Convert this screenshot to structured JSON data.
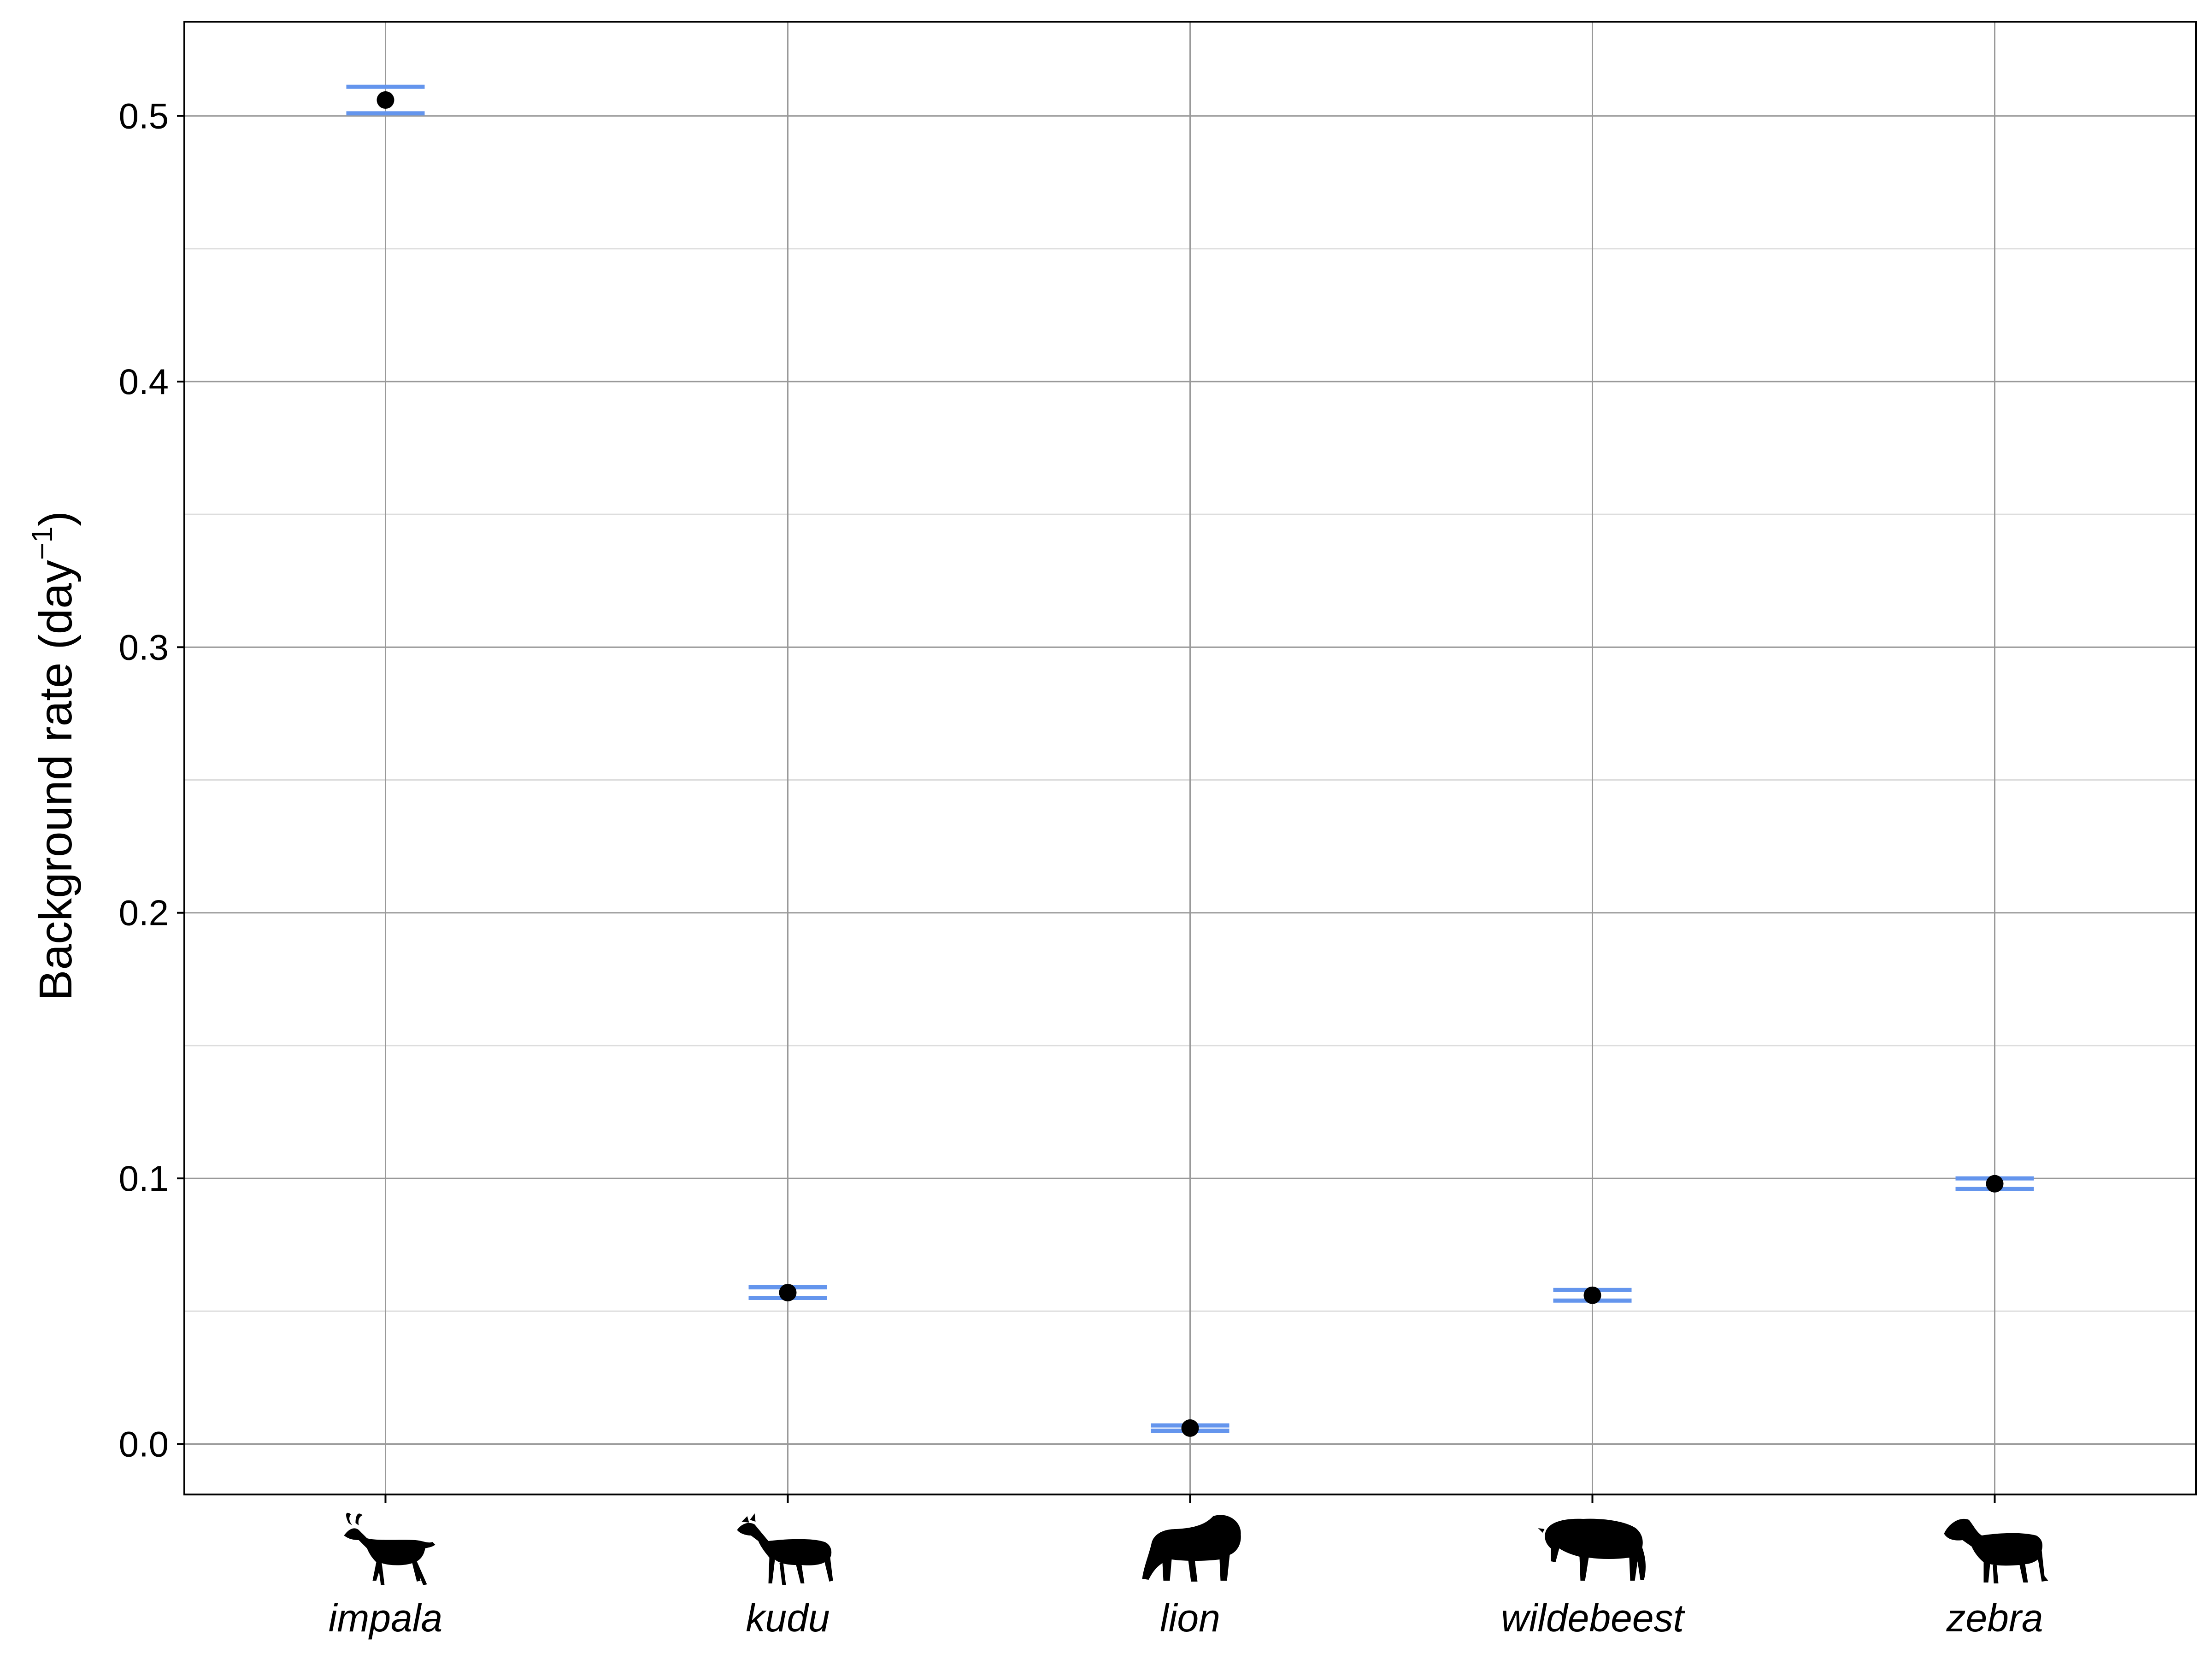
{
  "chart_data": {
    "type": "scatter",
    "categories": [
      "impala",
      "kudu",
      "lion",
      "wildebeest",
      "zebra"
    ],
    "values": [
      0.506,
      0.057,
      0.006,
      0.056,
      0.098
    ],
    "interval_lower": [
      0.501,
      0.055,
      0.005,
      0.054,
      0.096
    ],
    "interval_upper": [
      0.511,
      0.059,
      0.007,
      0.058,
      0.1
    ],
    "ylabel_main": "Background rate (day",
    "ylabel_sup": "−1",
    "ylabel_close": ")",
    "yticks": [
      "0.0",
      "0.1",
      "0.2",
      "0.3",
      "0.4",
      "0.5"
    ],
    "ytick_values": [
      0.0,
      0.1,
      0.2,
      0.3,
      0.4,
      0.5
    ],
    "ylim": [
      -0.019,
      0.5355
    ],
    "grid": true,
    "colors": {
      "point": "#000000",
      "interval": "#6495ED",
      "major_grid": "#999999",
      "minor_grid": "#dddddd"
    },
    "icons": [
      "impala-icon",
      "kudu-icon",
      "lion-icon",
      "wildebeest-icon",
      "zebra-icon"
    ]
  }
}
